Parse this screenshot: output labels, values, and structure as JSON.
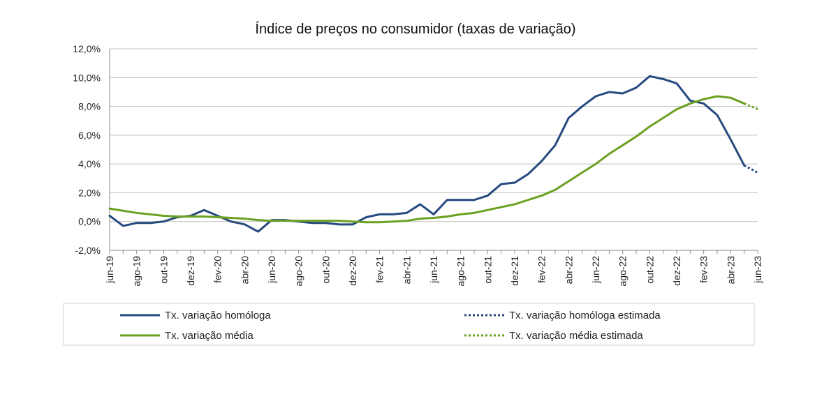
{
  "chart_data": {
    "type": "line",
    "title": "Índice de preços no consumidor  (taxas  de variação)",
    "xlabel": "",
    "ylabel": "",
    "ylim": [
      -2,
      12
    ],
    "y_ticks": [
      -2,
      0,
      2,
      4,
      6,
      8,
      10,
      12
    ],
    "y_tick_labels": [
      "-2,0%",
      "0,0%",
      "2,0%",
      "4,0%",
      "6,0%",
      "8,0%",
      "10,0%",
      "12,0%"
    ],
    "grid": "horizontal",
    "legend_position": "bottom",
    "x": [
      "jun-19",
      "jul-19",
      "ago-19",
      "set-19",
      "out-19",
      "nov-19",
      "dez-19",
      "jan-20",
      "fev-20",
      "mar-20",
      "abr-20",
      "mai-20",
      "jun-20",
      "jul-20",
      "ago-20",
      "set-20",
      "out-20",
      "nov-20",
      "dez-20",
      "jan-21",
      "fev-21",
      "mar-21",
      "abr-21",
      "mai-21",
      "jun-21",
      "jul-21",
      "ago-21",
      "set-21",
      "out-21",
      "nov-21",
      "dez-21",
      "jan-22",
      "fev-22",
      "mar-22",
      "abr-22",
      "mai-22",
      "jun-22",
      "jul-22",
      "ago-22",
      "set-22",
      "out-22",
      "nov-22",
      "dez-22",
      "jan-23",
      "fev-23",
      "mar-23",
      "abr-23",
      "mai-23",
      "jun-23"
    ],
    "x_tick_labels": [
      "jun-19",
      "",
      "ago-19",
      "",
      "out-19",
      "",
      "dez-19",
      "",
      "fev-20",
      "",
      "abr-20",
      "",
      "jun-20",
      "",
      "ago-20",
      "",
      "out-20",
      "",
      "dez-20",
      "",
      "fev-21",
      "",
      "abr-21",
      "",
      "jun-21",
      "",
      "ago-21",
      "",
      "out-21",
      "",
      "dez-21",
      "",
      "fev-22",
      "",
      "abr-22",
      "",
      "jun-22",
      "",
      "ago-22",
      "",
      "out-22",
      "",
      "dez-22",
      "",
      "fev-23",
      "",
      "abr-23",
      "",
      "jun-23"
    ],
    "series": [
      {
        "name": "Tx. variação homóloga",
        "color": "#264a7e",
        "style": "solid",
        "values": [
          0.4,
          -0.3,
          -0.1,
          -0.1,
          0.0,
          0.3,
          0.4,
          0.8,
          0.4,
          0.0,
          -0.2,
          -0.7,
          0.1,
          0.1,
          0.0,
          -0.1,
          -0.1,
          -0.2,
          -0.2,
          0.3,
          0.5,
          0.5,
          0.6,
          1.2,
          0.5,
          1.5,
          1.5,
          1.5,
          1.8,
          2.6,
          2.7,
          3.3,
          4.2,
          5.3,
          7.2,
          8.0,
          8.7,
          9.0,
          8.9,
          9.3,
          10.1,
          9.9,
          9.6,
          8.4,
          8.2,
          7.4,
          5.7,
          3.9,
          null
        ]
      },
      {
        "name": "Tx. variação homóloga estimada",
        "color": "#264a7e",
        "style": "dotted",
        "values": [
          null,
          null,
          null,
          null,
          null,
          null,
          null,
          null,
          null,
          null,
          null,
          null,
          null,
          null,
          null,
          null,
          null,
          null,
          null,
          null,
          null,
          null,
          null,
          null,
          null,
          null,
          null,
          null,
          null,
          null,
          null,
          null,
          null,
          null,
          null,
          null,
          null,
          null,
          null,
          null,
          null,
          null,
          null,
          null,
          null,
          null,
          null,
          3.9,
          3.4
        ]
      },
      {
        "name": "Tx. variação média",
        "color": "#6aa121",
        "style": "solid",
        "values": [
          0.9,
          0.75,
          0.6,
          0.5,
          0.4,
          0.35,
          0.35,
          0.35,
          0.3,
          0.25,
          0.2,
          0.1,
          0.05,
          0.05,
          0.05,
          0.05,
          0.05,
          0.05,
          0.0,
          -0.05,
          -0.05,
          0.0,
          0.05,
          0.2,
          0.25,
          0.35,
          0.5,
          0.6,
          0.8,
          1.0,
          1.2,
          1.5,
          1.8,
          2.2,
          2.8,
          3.4,
          4.0,
          4.7,
          5.3,
          5.9,
          6.6,
          7.2,
          7.8,
          8.2,
          8.5,
          8.7,
          8.6,
          8.2,
          null
        ]
      },
      {
        "name": "Tx. variação média  estimada",
        "color": "#6aa121",
        "style": "dotted",
        "values": [
          null,
          null,
          null,
          null,
          null,
          null,
          null,
          null,
          null,
          null,
          null,
          null,
          null,
          null,
          null,
          null,
          null,
          null,
          null,
          null,
          null,
          null,
          null,
          null,
          null,
          null,
          null,
          null,
          null,
          null,
          null,
          null,
          null,
          null,
          null,
          null,
          null,
          null,
          null,
          null,
          null,
          null,
          null,
          null,
          null,
          null,
          null,
          8.2,
          7.8
        ]
      }
    ]
  }
}
